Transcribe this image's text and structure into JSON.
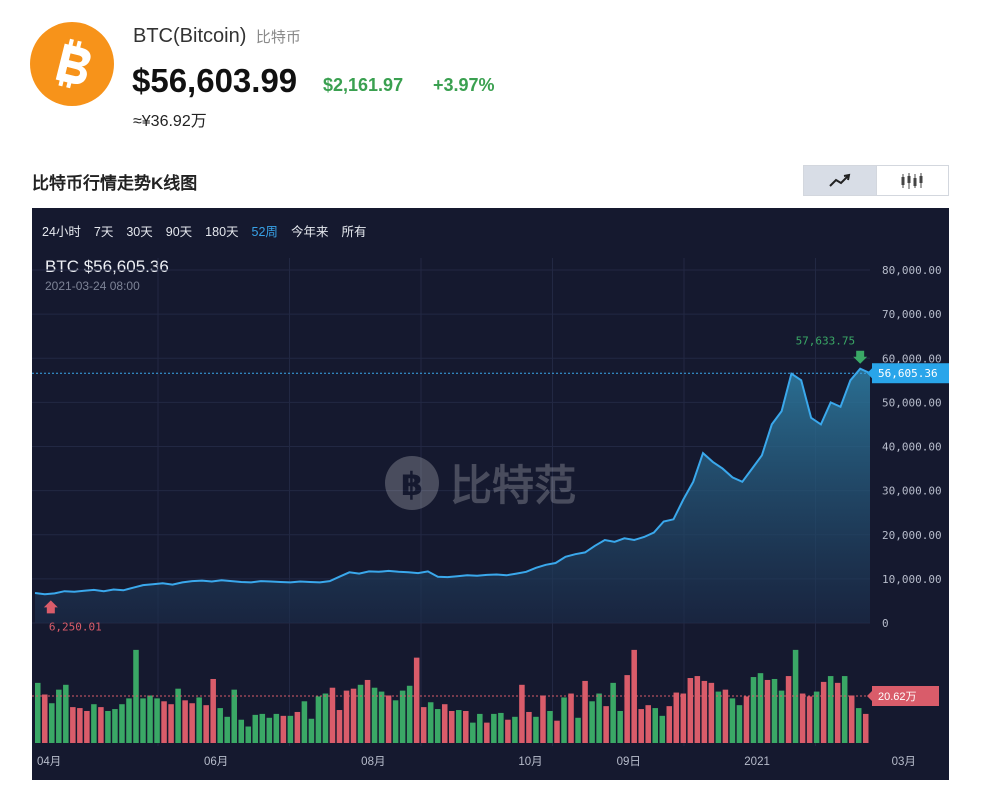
{
  "coin": {
    "name": "BTC(Bitcoin)",
    "name_cn": "比特币",
    "price": "$56,603.99",
    "change_abs": "$2,161.97",
    "change_pct": "+3.97%",
    "price_cny": "≈¥36.92万",
    "logo_symbol": "bitcoin-logo"
  },
  "section": {
    "title": "比特币行情走势K线图"
  },
  "toggle": {
    "items": [
      {
        "icon": "line-chart-icon",
        "active": true
      },
      {
        "icon": "candlestick-icon",
        "active": false
      }
    ]
  },
  "chart": {
    "ranges": [
      {
        "label": "24小时",
        "active": false
      },
      {
        "label": "7天",
        "active": false
      },
      {
        "label": "30天",
        "active": false
      },
      {
        "label": "90天",
        "active": false
      },
      {
        "label": "180天",
        "active": false
      },
      {
        "label": "52周",
        "active": true
      },
      {
        "label": "今年来",
        "active": false
      },
      {
        "label": "所有",
        "active": false
      }
    ],
    "readout_label": "BTC $56,605.36",
    "readout_time": "2021-03-24 08:00",
    "watermark": "比特范",
    "current_price_tag": "56,605.36",
    "high_label": "57,633.75",
    "low_label": "6,250.01",
    "volume_tag": "20.62万"
  },
  "colors": {
    "line": "#3aa8ec",
    "up": "#3aa866",
    "down": "#d95c6a",
    "background": "#15192f",
    "price_tag": "#29a5ea",
    "volume_tag": "#d95c6a",
    "brand": "#f7931a"
  },
  "chart_data": {
    "type": "area",
    "title": "",
    "xlabel": "",
    "ylabel": "",
    "ylim": [
      0,
      80000
    ],
    "yticks": [
      "80,000.00",
      "70,000.00",
      "60,000.00",
      "50,000.00",
      "40,000.00",
      "30,000.00",
      "20,000.00",
      "10,000.00",
      "0"
    ],
    "yticks_values": [
      80000,
      70000,
      60000,
      50000,
      40000,
      30000,
      20000,
      10000,
      0
    ],
    "x_tick_labels": [
      "04月",
      "06月",
      "08月",
      "10月",
      "09日",
      "2021",
      "03月"
    ],
    "x_tick_index": [
      0,
      17,
      33,
      49,
      59,
      72,
      87
    ],
    "series": [
      {
        "name": "BTC",
        "values": [
          6800,
          6500,
          6700,
          7200,
          7100,
          7300,
          7500,
          7200,
          7600,
          7400,
          8000,
          8600,
          8800,
          9000,
          8700,
          9200,
          9500,
          9600,
          9400,
          9700,
          9500,
          9300,
          9200,
          9500,
          9400,
          9300,
          9200,
          9400,
          9300,
          9200,
          9500,
          10500,
          11500,
          11200,
          11700,
          11600,
          11800,
          11600,
          11500,
          11300,
          11700,
          10500,
          10400,
          10600,
          10800,
          10700,
          10900,
          11000,
          10800,
          11200,
          11600,
          12500,
          13200,
          13600,
          15000,
          15600,
          16000,
          17500,
          18800,
          18400,
          19200,
          18800,
          19500,
          20500,
          23000,
          23500,
          28000,
          32000,
          38500,
          36500,
          35000,
          33000,
          32000,
          35000,
          38000,
          45000,
          48000,
          56500,
          55000,
          46500,
          45000,
          50000,
          49000,
          55000,
          57633.75,
          56605.36
        ]
      },
      {
        "name": "Volume",
        "values": [
          0.62,
          0.5,
          0.41,
          0.55,
          0.6,
          0.37,
          0.36,
          0.33,
          0.4,
          0.37,
          0.33,
          0.35,
          0.4,
          0.46,
          0.96,
          0.46,
          0.49,
          0.46,
          0.43,
          0.4,
          0.56,
          0.44,
          0.41,
          0.47,
          0.39,
          0.66,
          0.36,
          0.27,
          0.55,
          0.24,
          0.17,
          0.29,
          0.3,
          0.26,
          0.3,
          0.28,
          0.28,
          0.32,
          0.43,
          0.25,
          0.48,
          0.51,
          0.57,
          0.34,
          0.54,
          0.56,
          0.6,
          0.65,
          0.57,
          0.53,
          0.49,
          0.44,
          0.54,
          0.59,
          0.88,
          0.37,
          0.42,
          0.35,
          0.4,
          0.33,
          0.34,
          0.33,
          0.21,
          0.3,
          0.21,
          0.3,
          0.31,
          0.24,
          0.27,
          0.6,
          0.32,
          0.27,
          0.49,
          0.33,
          0.23,
          0.47,
          0.51,
          0.26,
          0.64,
          0.43,
          0.51,
          0.38,
          0.62,
          0.33,
          0.7,
          0.96,
          0.35,
          0.39,
          0.36,
          0.28,
          0.38,
          0.52,
          0.51,
          0.67,
          0.69,
          0.64,
          0.62,
          0.53,
          0.55,
          0.46,
          0.39,
          0.48,
          0.68,
          0.72,
          0.65,
          0.66,
          0.54,
          0.69,
          0.96,
          0.51,
          0.48,
          0.53,
          0.63,
          0.69,
          0.62,
          0.69,
          0.49,
          0.36,
          0.3
        ]
      }
    ],
    "volume_directions": [
      "u",
      "d",
      "u",
      "u",
      "u",
      "d",
      "d",
      "d",
      "u",
      "d",
      "u",
      "u",
      "u",
      "u",
      "u",
      "u",
      "u",
      "u",
      "d",
      "d",
      "u",
      "d",
      "d",
      "u",
      "d",
      "d",
      "u",
      "u",
      "u",
      "u",
      "u",
      "u",
      "u",
      "u",
      "u",
      "d",
      "u",
      "d",
      "u",
      "u",
      "u",
      "u",
      "d",
      "d",
      "d",
      "d",
      "u",
      "d",
      "u",
      "u",
      "d",
      "u",
      "u",
      "u",
      "d",
      "d",
      "u",
      "u",
      "d",
      "d",
      "u",
      "d",
      "u",
      "u",
      "d",
      "u",
      "u",
      "d",
      "u",
      "d",
      "d",
      "u",
      "d",
      "u",
      "d",
      "u",
      "d",
      "u",
      "d",
      "u",
      "u",
      "d",
      "u",
      "u",
      "d",
      "d",
      "d",
      "d",
      "u",
      "u",
      "d",
      "d",
      "d",
      "d",
      "d",
      "d",
      "d",
      "u",
      "d",
      "u",
      "u",
      "d",
      "u",
      "u",
      "d",
      "u",
      "u",
      "d",
      "u",
      "d",
      "d",
      "u",
      "d",
      "u",
      "d",
      "u",
      "d",
      "u",
      "d"
    ],
    "current_value": 56605.36,
    "high_value": 57633.75,
    "low_value": 6250.01
  }
}
